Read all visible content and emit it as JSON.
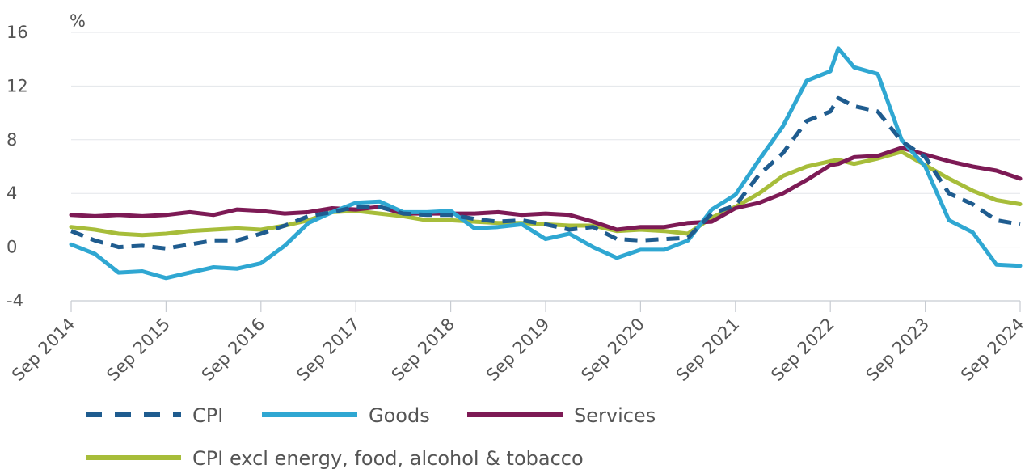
{
  "chart_data": {
    "type": "line",
    "unit": "%",
    "ylim": [
      -4,
      16
    ],
    "yticks": [
      -4,
      0,
      4,
      8,
      12,
      16
    ],
    "grid": true,
    "legend_position": "bottom",
    "x_tick_labels": [
      "Sep 2014",
      "Sep 2015",
      "Sep 2016",
      "Sep 2017",
      "Sep 2018",
      "Sep 2019",
      "Sep 2020",
      "Sep 2021",
      "Sep 2022",
      "Sep 2023",
      "Sep 2024"
    ],
    "series": [
      {
        "name": "CPI",
        "color": "#1f5c8f",
        "dash": true,
        "points": [
          [
            "2014-09",
            1.2
          ],
          [
            "2014-12",
            0.5
          ],
          [
            "2015-03",
            0.0
          ],
          [
            "2015-06",
            0.1
          ],
          [
            "2015-09",
            -0.1
          ],
          [
            "2015-12",
            0.2
          ],
          [
            "2016-03",
            0.5
          ],
          [
            "2016-06",
            0.5
          ],
          [
            "2016-09",
            1.0
          ],
          [
            "2016-12",
            1.6
          ],
          [
            "2017-03",
            2.3
          ],
          [
            "2017-06",
            2.6
          ],
          [
            "2017-09",
            3.0
          ],
          [
            "2017-12",
            3.0
          ],
          [
            "2018-03",
            2.5
          ],
          [
            "2018-06",
            2.4
          ],
          [
            "2018-09",
            2.4
          ],
          [
            "2018-12",
            2.1
          ],
          [
            "2019-03",
            1.9
          ],
          [
            "2019-06",
            2.0
          ],
          [
            "2019-09",
            1.7
          ],
          [
            "2019-12",
            1.3
          ],
          [
            "2020-03",
            1.5
          ],
          [
            "2020-06",
            0.6
          ],
          [
            "2020-09",
            0.5
          ],
          [
            "2020-12",
            0.6
          ],
          [
            "2021-03",
            0.7
          ],
          [
            "2021-06",
            2.5
          ],
          [
            "2021-09",
            3.1
          ],
          [
            "2021-12",
            5.4
          ],
          [
            "2022-03",
            7.0
          ],
          [
            "2022-06",
            9.4
          ],
          [
            "2022-09",
            10.1
          ],
          [
            "2022-10",
            11.1
          ],
          [
            "2022-12",
            10.5
          ],
          [
            "2023-03",
            10.1
          ],
          [
            "2023-06",
            7.9
          ],
          [
            "2023-09",
            6.7
          ],
          [
            "2023-12",
            4.0
          ],
          [
            "2024-03",
            3.2
          ],
          [
            "2024-06",
            2.0
          ],
          [
            "2024-09",
            1.7
          ]
        ]
      },
      {
        "name": "Goods",
        "color": "#2fa7d2",
        "dash": false,
        "points": [
          [
            "2014-09",
            0.2
          ],
          [
            "2014-12",
            -0.5
          ],
          [
            "2015-03",
            -1.9
          ],
          [
            "2015-06",
            -1.8
          ],
          [
            "2015-09",
            -2.3
          ],
          [
            "2015-12",
            -1.9
          ],
          [
            "2016-03",
            -1.5
          ],
          [
            "2016-06",
            -1.6
          ],
          [
            "2016-09",
            -1.2
          ],
          [
            "2016-12",
            0.1
          ],
          [
            "2017-03",
            1.8
          ],
          [
            "2017-06",
            2.6
          ],
          [
            "2017-09",
            3.3
          ],
          [
            "2017-12",
            3.4
          ],
          [
            "2018-03",
            2.6
          ],
          [
            "2018-06",
            2.6
          ],
          [
            "2018-09",
            2.7
          ],
          [
            "2018-12",
            1.4
          ],
          [
            "2019-03",
            1.5
          ],
          [
            "2019-06",
            1.7
          ],
          [
            "2019-09",
            0.6
          ],
          [
            "2019-12",
            1.0
          ],
          [
            "2020-03",
            0.0
          ],
          [
            "2020-06",
            -0.8
          ],
          [
            "2020-09",
            -0.2
          ],
          [
            "2020-12",
            -0.2
          ],
          [
            "2021-03",
            0.5
          ],
          [
            "2021-06",
            2.8
          ],
          [
            "2021-09",
            3.9
          ],
          [
            "2021-12",
            6.5
          ],
          [
            "2022-03",
            9.0
          ],
          [
            "2022-06",
            12.4
          ],
          [
            "2022-09",
            13.1
          ],
          [
            "2022-10",
            14.8
          ],
          [
            "2022-12",
            13.4
          ],
          [
            "2023-03",
            12.9
          ],
          [
            "2023-06",
            8.0
          ],
          [
            "2023-09",
            6.0
          ],
          [
            "2023-12",
            2.0
          ],
          [
            "2024-03",
            1.1
          ],
          [
            "2024-06",
            -1.3
          ],
          [
            "2024-09",
            -1.4
          ]
        ]
      },
      {
        "name": "Services",
        "color": "#7d1a55",
        "dash": false,
        "points": [
          [
            "2014-09",
            2.4
          ],
          [
            "2014-12",
            2.3
          ],
          [
            "2015-03",
            2.4
          ],
          [
            "2015-06",
            2.3
          ],
          [
            "2015-09",
            2.4
          ],
          [
            "2015-12",
            2.6
          ],
          [
            "2016-03",
            2.4
          ],
          [
            "2016-06",
            2.8
          ],
          [
            "2016-09",
            2.7
          ],
          [
            "2016-12",
            2.5
          ],
          [
            "2017-03",
            2.6
          ],
          [
            "2017-06",
            2.9
          ],
          [
            "2017-09",
            2.8
          ],
          [
            "2017-12",
            3.0
          ],
          [
            "2018-03",
            2.5
          ],
          [
            "2018-06",
            2.5
          ],
          [
            "2018-09",
            2.5
          ],
          [
            "2018-12",
            2.5
          ],
          [
            "2019-03",
            2.6
          ],
          [
            "2019-06",
            2.4
          ],
          [
            "2019-09",
            2.5
          ],
          [
            "2019-12",
            2.4
          ],
          [
            "2020-03",
            1.9
          ],
          [
            "2020-06",
            1.3
          ],
          [
            "2020-09",
            1.5
          ],
          [
            "2020-12",
            1.5
          ],
          [
            "2021-03",
            1.8
          ],
          [
            "2021-06",
            1.9
          ],
          [
            "2021-09",
            2.9
          ],
          [
            "2021-12",
            3.3
          ],
          [
            "2022-03",
            4.0
          ],
          [
            "2022-06",
            5.0
          ],
          [
            "2022-09",
            6.1
          ],
          [
            "2022-10",
            6.2
          ],
          [
            "2022-12",
            6.7
          ],
          [
            "2023-03",
            6.8
          ],
          [
            "2023-06",
            7.4
          ],
          [
            "2023-09",
            6.9
          ],
          [
            "2023-12",
            6.4
          ],
          [
            "2024-03",
            6.0
          ],
          [
            "2024-06",
            5.7
          ],
          [
            "2024-09",
            5.1
          ]
        ]
      },
      {
        "name": "CPI excl energy, food, alcohol & tobacco",
        "color": "#a7bd3a",
        "dash": false,
        "points": [
          [
            "2014-09",
            1.5
          ],
          [
            "2014-12",
            1.3
          ],
          [
            "2015-03",
            1.0
          ],
          [
            "2015-06",
            0.9
          ],
          [
            "2015-09",
            1.0
          ],
          [
            "2015-12",
            1.2
          ],
          [
            "2016-03",
            1.3
          ],
          [
            "2016-06",
            1.4
          ],
          [
            "2016-09",
            1.3
          ],
          [
            "2016-12",
            1.6
          ],
          [
            "2017-03",
            2.0
          ],
          [
            "2017-06",
            2.6
          ],
          [
            "2017-09",
            2.7
          ],
          [
            "2017-12",
            2.5
          ],
          [
            "2018-03",
            2.3
          ],
          [
            "2018-06",
            2.0
          ],
          [
            "2018-09",
            2.0
          ],
          [
            "2018-12",
            1.9
          ],
          [
            "2019-03",
            1.8
          ],
          [
            "2019-06",
            1.8
          ],
          [
            "2019-09",
            1.7
          ],
          [
            "2019-12",
            1.6
          ],
          [
            "2020-03",
            1.6
          ],
          [
            "2020-06",
            1.2
          ],
          [
            "2020-09",
            1.3
          ],
          [
            "2020-12",
            1.2
          ],
          [
            "2021-03",
            1.0
          ],
          [
            "2021-06",
            2.2
          ],
          [
            "2021-09",
            3.0
          ],
          [
            "2021-12",
            4.0
          ],
          [
            "2022-03",
            5.3
          ],
          [
            "2022-06",
            6.0
          ],
          [
            "2022-09",
            6.4
          ],
          [
            "2022-10",
            6.5
          ],
          [
            "2022-12",
            6.2
          ],
          [
            "2023-03",
            6.6
          ],
          [
            "2023-06",
            7.1
          ],
          [
            "2023-09",
            6.1
          ],
          [
            "2023-12",
            5.1
          ],
          [
            "2024-03",
            4.2
          ],
          [
            "2024-06",
            3.5
          ],
          [
            "2024-09",
            3.2
          ]
        ]
      }
    ]
  }
}
